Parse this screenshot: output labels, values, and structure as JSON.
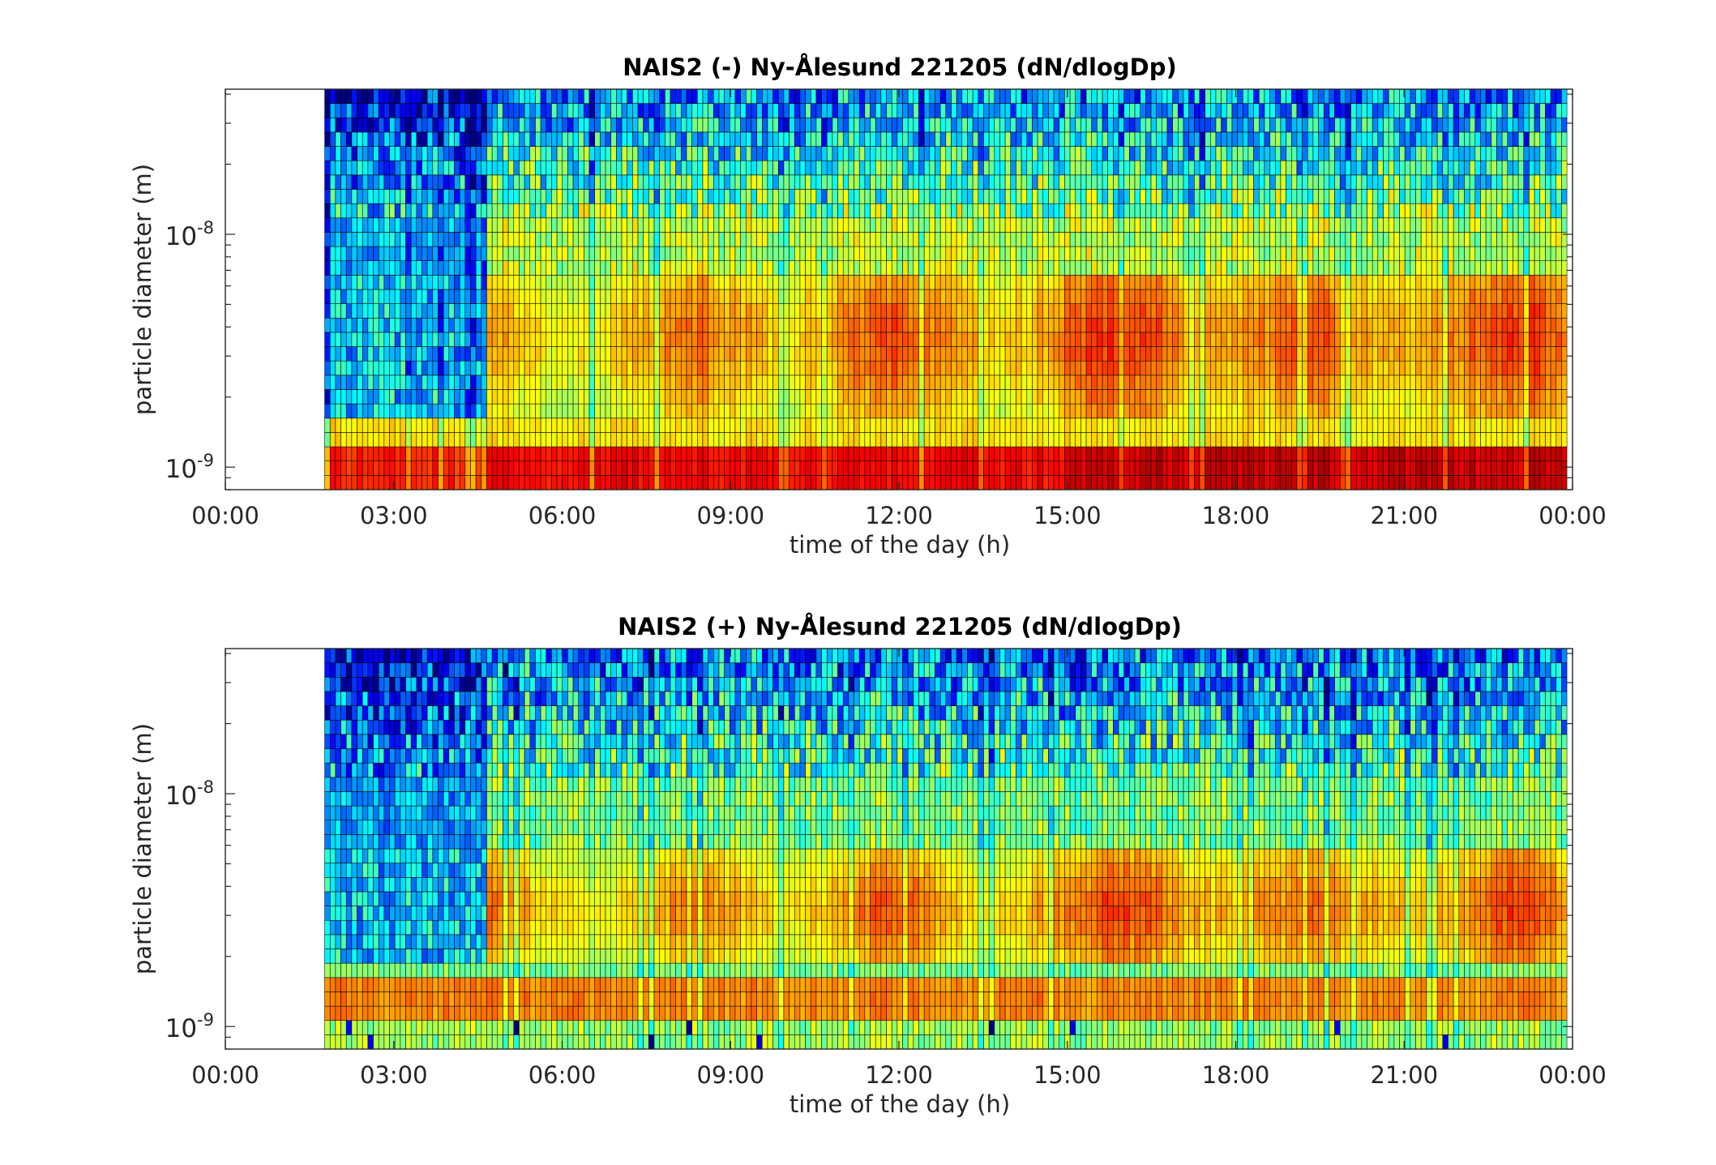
{
  "chart_data": [
    {
      "type": "heatmap",
      "title": "NAIS2 (-) Ny-Ålesund 221205 (dN/dlogDp)",
      "xlabel": "time of the day (h)",
      "ylabel": "particle diameter (m)",
      "y_scale": "log",
      "xlim": [
        0,
        24
      ],
      "ylim": [
        8e-10,
        4.2e-08
      ],
      "data_start_hour": 1.77,
      "x_ticks": [
        "00:00",
        "03:00",
        "06:00",
        "09:00",
        "12:00",
        "15:00",
        "18:00",
        "21:00",
        "00:00"
      ],
      "y_ticks": [
        {
          "base": "10",
          "exp": "-9",
          "value": 1e-09
        },
        {
          "base": "10",
          "exp": "-8",
          "value": 1e-08
        }
      ],
      "grid": false,
      "legend": "none",
      "colormap": "jet",
      "profile": "negative",
      "colorbar": "none"
    },
    {
      "type": "heatmap",
      "title": "NAIS2 (+) Ny-Ålesund 221205 (dN/dlogDp)",
      "xlabel": "time of the day (h)",
      "ylabel": "particle diameter (m)",
      "y_scale": "log",
      "xlim": [
        0,
        24
      ],
      "ylim": [
        8e-10,
        4.2e-08
      ],
      "data_start_hour": 1.77,
      "x_ticks": [
        "00:00",
        "03:00",
        "06:00",
        "09:00",
        "12:00",
        "15:00",
        "18:00",
        "21:00",
        "00:00"
      ],
      "y_ticks": [
        {
          "base": "10",
          "exp": "-9",
          "value": 1e-09
        },
        {
          "base": "10",
          "exp": "-8",
          "value": 1e-08
        }
      ],
      "grid": false,
      "legend": "none",
      "colormap": "jet",
      "profile": "positive",
      "colorbar": "none"
    }
  ]
}
